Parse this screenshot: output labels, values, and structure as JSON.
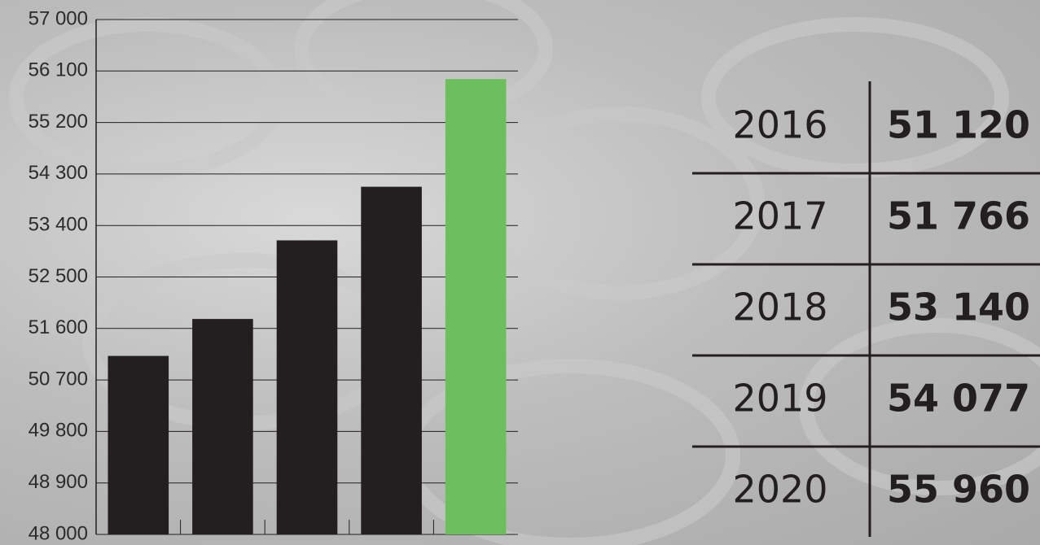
{
  "chart_data": {
    "type": "bar",
    "categories": [
      "2016",
      "2017",
      "2018",
      "2019",
      "2020"
    ],
    "values": [
      51120,
      51766,
      53140,
      54077,
      55960
    ],
    "value_labels": [
      "51 120",
      "51 766",
      "53 140",
      "54 077",
      "55 960"
    ],
    "colors": [
      "#231f20",
      "#231f20",
      "#231f20",
      "#231f20",
      "#6cbf5c"
    ],
    "ylim": [
      48000,
      57000
    ],
    "yticks": [
      {
        "value": 48000,
        "label": "48 000"
      },
      {
        "value": 48900,
        "label": "48 900"
      },
      {
        "value": 49800,
        "label": "49 800"
      },
      {
        "value": 50700,
        "label": "50 700"
      },
      {
        "value": 51600,
        "label": "51 600"
      },
      {
        "value": 52500,
        "label": "52 500"
      },
      {
        "value": 53400,
        "label": "53 400"
      },
      {
        "value": 54300,
        "label": "54 300"
      },
      {
        "value": 55200,
        "label": "55 200"
      },
      {
        "value": 56100,
        "label": "56 100"
      },
      {
        "value": 57000,
        "label": "57 000"
      }
    ],
    "grid": true
  }
}
